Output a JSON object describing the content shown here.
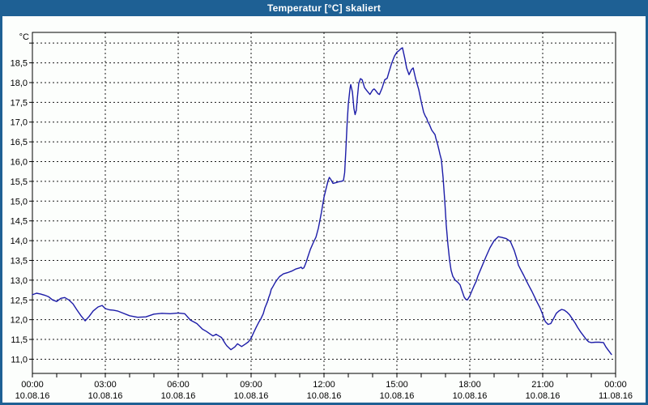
{
  "window": {
    "title": "Temperatur [°C] skaliert"
  },
  "colors": {
    "titlebar_bg": "#1E6094",
    "window_border": "#1E6094",
    "background": "#FCFEFC",
    "grid": "#1a1a1a",
    "axis": "#000000",
    "line": "#1C1CA8",
    "label_text": "#000000",
    "title_text": "#FFFFFF"
  },
  "chart_data": {
    "type": "line",
    "title": "Temperatur [°C] skaliert",
    "y_unit_label": "°C",
    "xlabel": "",
    "ylabel": "°C",
    "grid": "dashed",
    "legend": "none",
    "ylim": [
      10.64,
      19.27
    ],
    "xlim_hours": [
      0,
      24
    ],
    "minor_x_tick_every_hours": 1,
    "y_ticks": [
      {
        "value": 19.0,
        "label": ""
      },
      {
        "value": 18.5,
        "label": "18,5"
      },
      {
        "value": 18.0,
        "label": "18,0"
      },
      {
        "value": 17.5,
        "label": "17,5"
      },
      {
        "value": 17.0,
        "label": "17,0"
      },
      {
        "value": 16.5,
        "label": "16,5"
      },
      {
        "value": 16.0,
        "label": "16,0"
      },
      {
        "value": 15.5,
        "label": "15,5"
      },
      {
        "value": 15.0,
        "label": "15,0"
      },
      {
        "value": 14.5,
        "label": "14,5"
      },
      {
        "value": 14.0,
        "label": "14,0"
      },
      {
        "value": 13.5,
        "label": "13,5"
      },
      {
        "value": 13.0,
        "label": "13,0"
      },
      {
        "value": 12.5,
        "label": "12,5"
      },
      {
        "value": 12.0,
        "label": "12,0"
      },
      {
        "value": 11.5,
        "label": "11,5"
      },
      {
        "value": 11.0,
        "label": "11,0"
      }
    ],
    "x_ticks": [
      {
        "hour": 0,
        "time": "00:00",
        "date": "10.08.16"
      },
      {
        "hour": 3,
        "time": "03:00",
        "date": "10.08.16"
      },
      {
        "hour": 6,
        "time": "06:00",
        "date": "10.08.16"
      },
      {
        "hour": 9,
        "time": "09:00",
        "date": "10.08.16"
      },
      {
        "hour": 12,
        "time": "12:00",
        "date": "10.08.16"
      },
      {
        "hour": 15,
        "time": "15:00",
        "date": "10.08.16"
      },
      {
        "hour": 18,
        "time": "18:00",
        "date": "10.08.16"
      },
      {
        "hour": 21,
        "time": "21:00",
        "date": "10.08.16"
      },
      {
        "hour": 24,
        "time": "00:00",
        "date": "11.08.16"
      }
    ],
    "series": [
      {
        "name": "Temperatur",
        "color": "#1C1CA8",
        "points": [
          [
            0,
            12.63
          ],
          [
            0.17,
            12.67
          ],
          [
            0.33,
            12.65
          ],
          [
            0.5,
            12.62
          ],
          [
            0.67,
            12.58
          ],
          [
            0.83,
            12.5
          ],
          [
            1.0,
            12.46
          ],
          [
            1.17,
            12.54
          ],
          [
            1.33,
            12.56
          ],
          [
            1.5,
            12.5
          ],
          [
            1.67,
            12.4
          ],
          [
            1.83,
            12.25
          ],
          [
            2.0,
            12.1
          ],
          [
            2.17,
            11.97
          ],
          [
            2.33,
            12.08
          ],
          [
            2.5,
            12.22
          ],
          [
            2.7,
            12.32
          ],
          [
            2.87,
            12.36
          ],
          [
            3.0,
            12.28
          ],
          [
            3.17,
            12.25
          ],
          [
            3.33,
            12.24
          ],
          [
            3.5,
            12.22
          ],
          [
            3.67,
            12.18
          ],
          [
            4.0,
            12.1
          ],
          [
            4.33,
            12.06
          ],
          [
            4.67,
            12.07
          ],
          [
            5.0,
            12.14
          ],
          [
            5.33,
            12.16
          ],
          [
            5.67,
            12.15
          ],
          [
            6.0,
            12.17
          ],
          [
            6.27,
            12.15
          ],
          [
            6.5,
            11.99
          ],
          [
            6.77,
            11.9
          ],
          [
            7.0,
            11.76
          ],
          [
            7.17,
            11.7
          ],
          [
            7.33,
            11.63
          ],
          [
            7.43,
            11.59
          ],
          [
            7.56,
            11.63
          ],
          [
            7.67,
            11.59
          ],
          [
            7.78,
            11.55
          ],
          [
            7.83,
            11.5
          ],
          [
            7.94,
            11.39
          ],
          [
            8.0,
            11.34
          ],
          [
            8.17,
            11.24
          ],
          [
            8.33,
            11.31
          ],
          [
            8.44,
            11.39
          ],
          [
            8.61,
            11.32
          ],
          [
            8.78,
            11.39
          ],
          [
            8.89,
            11.44
          ],
          [
            9.0,
            11.53
          ],
          [
            9.11,
            11.68
          ],
          [
            9.22,
            11.82
          ],
          [
            9.33,
            11.95
          ],
          [
            9.4,
            12.02
          ],
          [
            9.5,
            12.15
          ],
          [
            9.57,
            12.3
          ],
          [
            9.67,
            12.45
          ],
          [
            9.72,
            12.55
          ],
          [
            9.78,
            12.65
          ],
          [
            9.83,
            12.77
          ],
          [
            9.89,
            12.83
          ],
          [
            10.0,
            12.95
          ],
          [
            10.08,
            13.02
          ],
          [
            10.17,
            13.09
          ],
          [
            10.33,
            13.16
          ],
          [
            10.5,
            13.19
          ],
          [
            10.67,
            13.23
          ],
          [
            10.83,
            13.28
          ],
          [
            11.0,
            13.31
          ],
          [
            11.06,
            13.33
          ],
          [
            11.11,
            13.29
          ],
          [
            11.17,
            13.31
          ],
          [
            11.22,
            13.38
          ],
          [
            11.28,
            13.48
          ],
          [
            11.33,
            13.58
          ],
          [
            11.44,
            13.78
          ],
          [
            11.56,
            13.95
          ],
          [
            11.67,
            14.09
          ],
          [
            11.77,
            14.32
          ],
          [
            11.89,
            14.7
          ],
          [
            12.0,
            15.1
          ],
          [
            12.1,
            15.35
          ],
          [
            12.17,
            15.52
          ],
          [
            12.22,
            15.6
          ],
          [
            12.28,
            15.55
          ],
          [
            12.37,
            15.45
          ],
          [
            12.5,
            15.47
          ],
          [
            12.6,
            15.49
          ],
          [
            12.7,
            15.5
          ],
          [
            12.8,
            15.52
          ],
          [
            12.85,
            15.72
          ],
          [
            12.9,
            16.3
          ],
          [
            12.95,
            16.95
          ],
          [
            13.0,
            17.45
          ],
          [
            13.07,
            17.85
          ],
          [
            13.1,
            17.95
          ],
          [
            13.17,
            17.76
          ],
          [
            13.23,
            17.35
          ],
          [
            13.28,
            17.19
          ],
          [
            13.33,
            17.3
          ],
          [
            13.37,
            17.6
          ],
          [
            13.43,
            17.98
          ],
          [
            13.5,
            18.1
          ],
          [
            13.57,
            18.07
          ],
          [
            13.67,
            17.87
          ],
          [
            13.77,
            17.79
          ],
          [
            13.89,
            17.7
          ],
          [
            14.0,
            17.81
          ],
          [
            14.06,
            17.84
          ],
          [
            14.11,
            17.81
          ],
          [
            14.22,
            17.72
          ],
          [
            14.28,
            17.7
          ],
          [
            14.39,
            17.86
          ],
          [
            14.5,
            18.07
          ],
          [
            14.6,
            18.11
          ],
          [
            14.67,
            18.26
          ],
          [
            14.77,
            18.46
          ],
          [
            14.83,
            18.56
          ],
          [
            14.9,
            18.67
          ],
          [
            15.0,
            18.77
          ],
          [
            15.07,
            18.8
          ],
          [
            15.17,
            18.86
          ],
          [
            15.23,
            18.88
          ],
          [
            15.33,
            18.6
          ],
          [
            15.4,
            18.37
          ],
          [
            15.5,
            18.2
          ],
          [
            15.6,
            18.33
          ],
          [
            15.67,
            18.37
          ],
          [
            15.77,
            18.1
          ],
          [
            15.83,
            17.97
          ],
          [
            15.9,
            17.82
          ],
          [
            16.0,
            17.52
          ],
          [
            16.1,
            17.25
          ],
          [
            16.17,
            17.15
          ],
          [
            16.23,
            17.09
          ],
          [
            16.27,
            17.01
          ],
          [
            16.33,
            16.95
          ],
          [
            16.43,
            16.8
          ],
          [
            16.57,
            16.68
          ],
          [
            16.6,
            16.6
          ],
          [
            16.67,
            16.45
          ],
          [
            16.73,
            16.3
          ],
          [
            16.77,
            16.19
          ],
          [
            16.83,
            16.05
          ],
          [
            16.9,
            15.6
          ],
          [
            16.97,
            15.0
          ],
          [
            17.03,
            14.4
          ],
          [
            17.1,
            13.9
          ],
          [
            17.17,
            13.5
          ],
          [
            17.23,
            13.25
          ],
          [
            17.3,
            13.1
          ],
          [
            17.4,
            13.0
          ],
          [
            17.5,
            12.95
          ],
          [
            17.6,
            12.88
          ],
          [
            17.67,
            12.75
          ],
          [
            17.77,
            12.57
          ],
          [
            17.83,
            12.52
          ],
          [
            17.9,
            12.5
          ],
          [
            18.0,
            12.6
          ],
          [
            18.1,
            12.75
          ],
          [
            18.17,
            12.85
          ],
          [
            18.27,
            12.98
          ],
          [
            18.33,
            13.1
          ],
          [
            18.5,
            13.35
          ],
          [
            18.67,
            13.6
          ],
          [
            18.83,
            13.82
          ],
          [
            19.0,
            14.0
          ],
          [
            19.17,
            14.1
          ],
          [
            19.33,
            14.08
          ],
          [
            19.5,
            14.05
          ],
          [
            19.67,
            13.98
          ],
          [
            19.83,
            13.75
          ],
          [
            19.93,
            13.55
          ],
          [
            20.0,
            13.38
          ],
          [
            20.1,
            13.26
          ],
          [
            20.22,
            13.12
          ],
          [
            20.33,
            12.98
          ],
          [
            20.44,
            12.85
          ],
          [
            20.56,
            12.71
          ],
          [
            20.67,
            12.57
          ],
          [
            20.78,
            12.43
          ],
          [
            20.89,
            12.3
          ],
          [
            21.0,
            12.13
          ],
          [
            21.06,
            12.02
          ],
          [
            21.11,
            11.95
          ],
          [
            21.22,
            11.88
          ],
          [
            21.33,
            11.9
          ],
          [
            21.44,
            12.02
          ],
          [
            21.56,
            12.16
          ],
          [
            21.67,
            12.22
          ],
          [
            21.78,
            12.26
          ],
          [
            21.89,
            12.24
          ],
          [
            22.0,
            12.19
          ],
          [
            22.11,
            12.12
          ],
          [
            22.22,
            12.02
          ],
          [
            22.33,
            11.92
          ],
          [
            22.44,
            11.8
          ],
          [
            22.56,
            11.69
          ],
          [
            22.67,
            11.6
          ],
          [
            22.78,
            11.51
          ],
          [
            22.89,
            11.44
          ],
          [
            23.0,
            11.42
          ],
          [
            23.17,
            11.43
          ],
          [
            23.33,
            11.43
          ],
          [
            23.5,
            11.42
          ],
          [
            23.6,
            11.31
          ],
          [
            23.72,
            11.21
          ],
          [
            23.83,
            11.12
          ]
        ]
      }
    ]
  }
}
